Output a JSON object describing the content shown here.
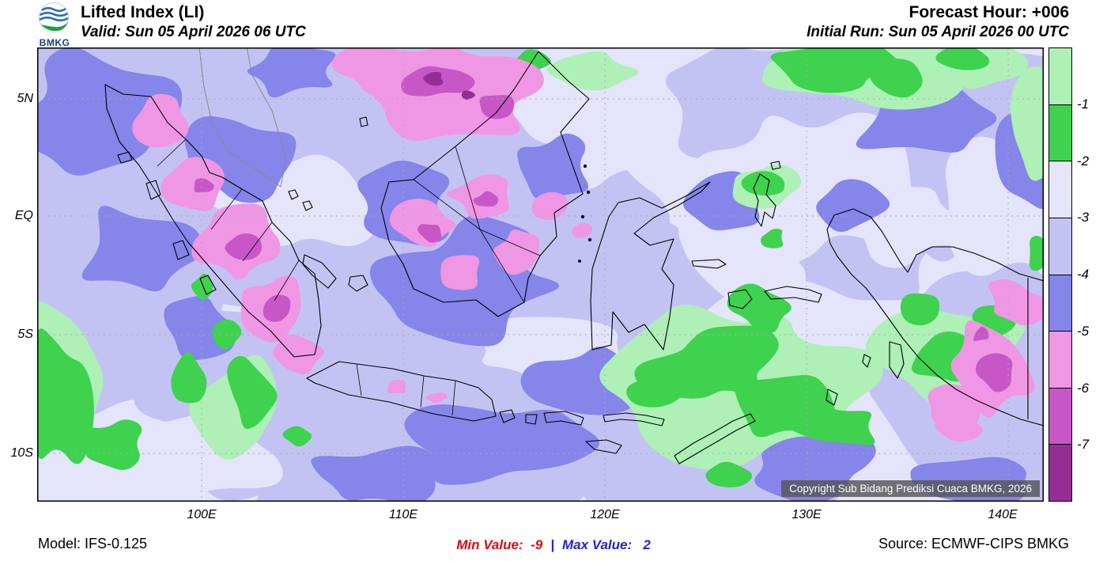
{
  "header": {
    "logo_text": "BMKG",
    "title": "Lifted Index (LI)",
    "valid_line": "Valid: Sun 05 April 2026 06 UTC",
    "forecast_hour": "Forecast Hour: +006",
    "initial_run": "Initial Run: Sun 05 April 2026 00 UTC"
  },
  "map": {
    "lat_labels": [
      "5N",
      "EQ",
      "5S",
      "10S"
    ],
    "lon_labels": [
      "100E",
      "110E",
      "120E",
      "130E",
      "140E"
    ],
    "copyright": "Copyright Sub Bidang Prediksi Cuaca BMKG, 2026"
  },
  "legend": {
    "tick_labels": [
      "-1",
      "-2",
      "-3",
      "-4",
      "-5",
      "-6",
      "-7"
    ],
    "colors": [
      "#aef0b6",
      "#3ed24e",
      "#e4e4fb",
      "#c3c3f3",
      "#8585ea",
      "#ef97e4",
      "#c757c7",
      "#962d96"
    ]
  },
  "footer": {
    "model": "Model: IFS-0.125",
    "min_label": "Min Value:",
    "min_value": "-9",
    "separator": "|",
    "max_label": "Max Value:",
    "max_value": "2",
    "source": "Source: ECMWF-CIPS BMKG",
    "min_color": "#e20613",
    "max_color": "#2323cd"
  },
  "chart_data": {
    "type": "contour_map",
    "variable": "Lifted Index (LI)",
    "x_tick_labels": [
      "100E",
      "110E",
      "120E",
      "130E",
      "140E"
    ],
    "y_tick_labels": [
      "5N",
      "EQ",
      "5S",
      "10S"
    ],
    "legend_levels": [
      -1,
      -2,
      -3,
      -4,
      -5,
      -6,
      -7
    ],
    "legend_colors": [
      "#aef0b6",
      "#3ed24e",
      "#e4e4fb",
      "#c3c3f3",
      "#8585ea",
      "#ef97e4",
      "#c757c7",
      "#962d96"
    ],
    "min_value": -9,
    "max_value": 2
  }
}
